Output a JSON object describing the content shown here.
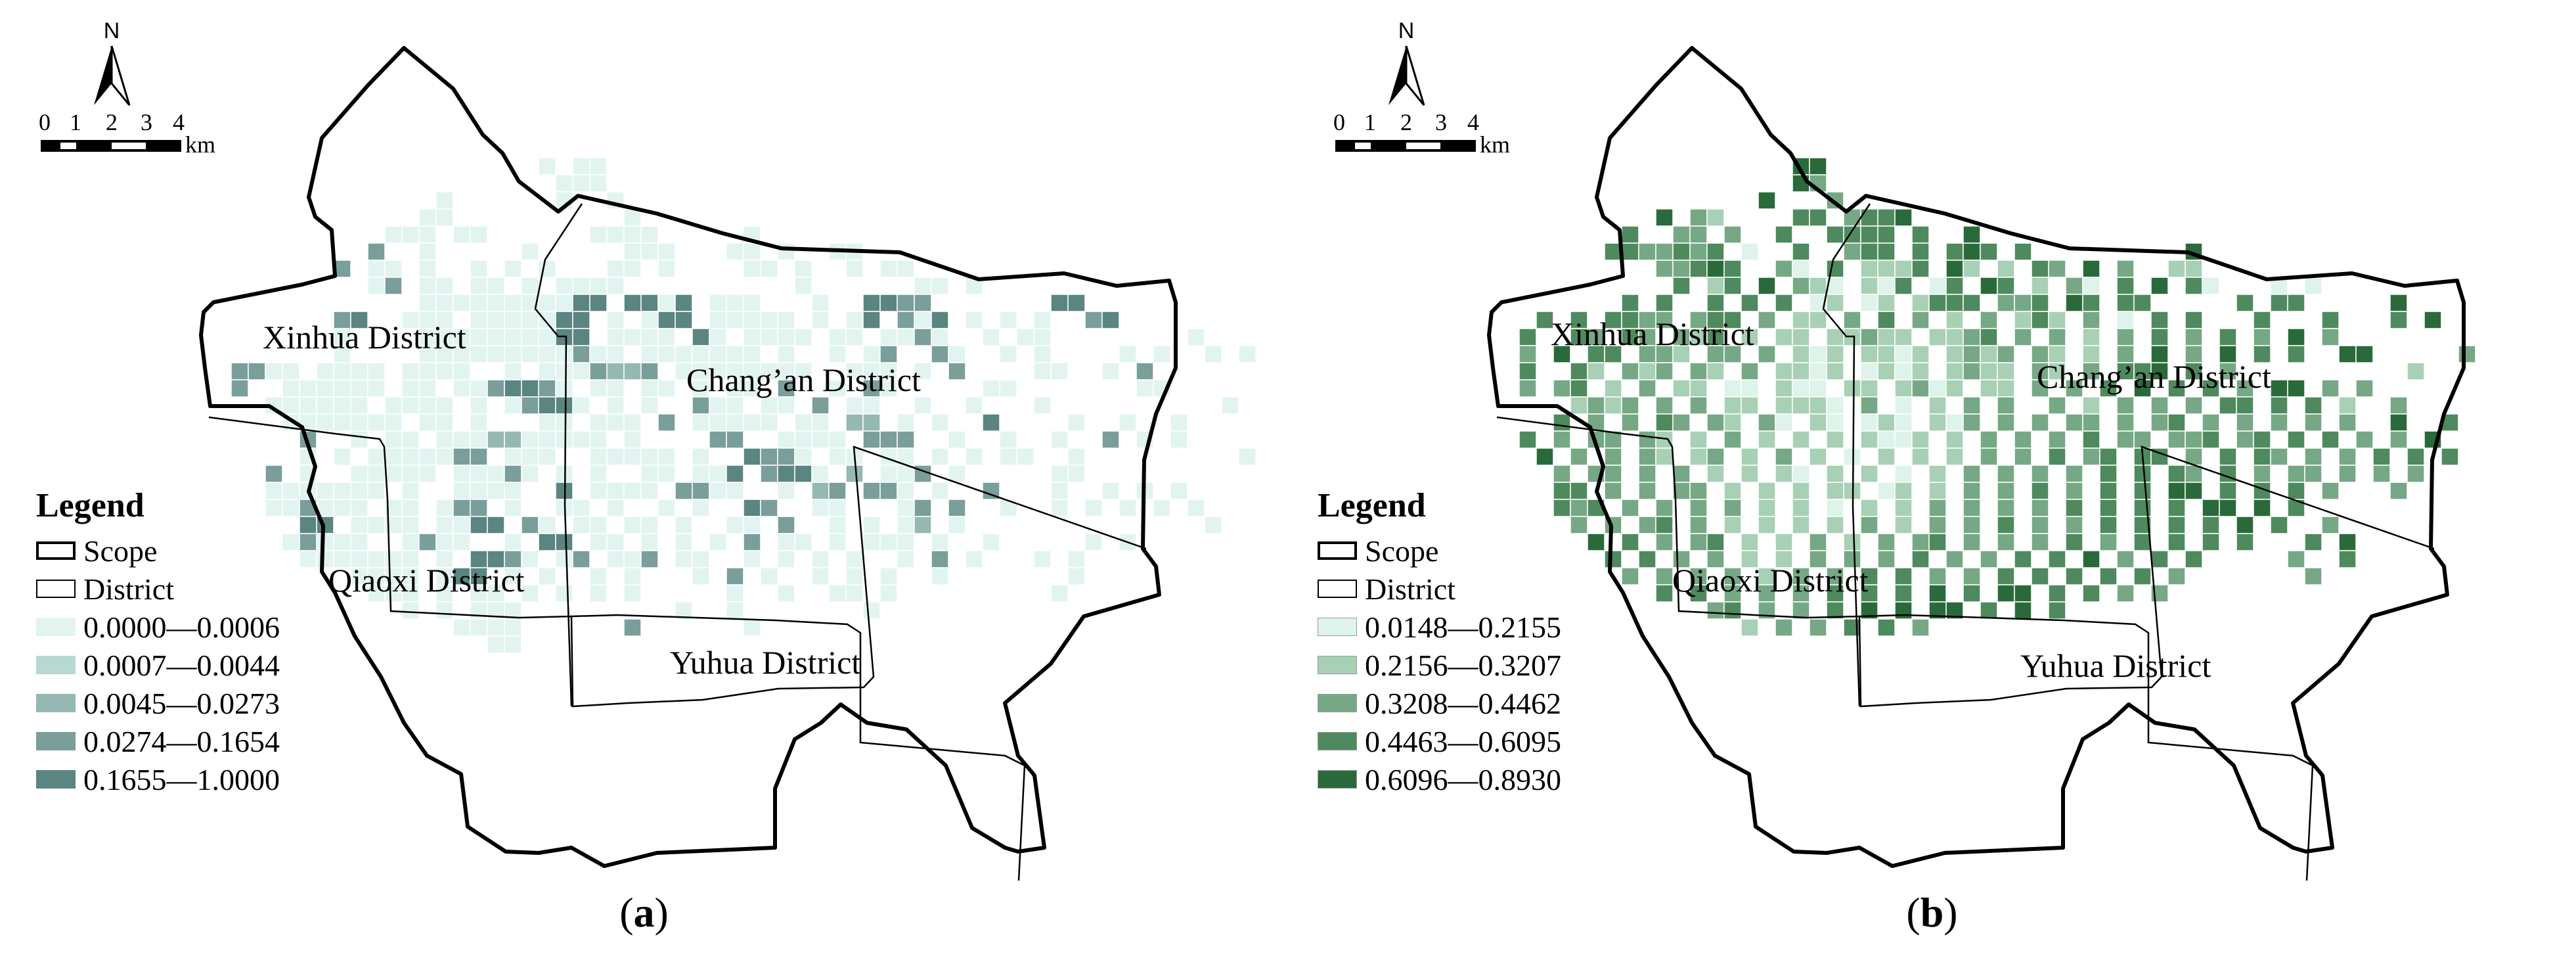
{
  "figure": {
    "panels": [
      {
        "id": "a",
        "caption_letter": "a",
        "north_label": "N",
        "scale_ticks": [
          "0",
          "1",
          "2",
          "3",
          "4"
        ],
        "scale_unit": "km",
        "legend": {
          "title": "Legend",
          "scope_label": "Scope",
          "district_label": "District",
          "classes": [
            {
              "label": "0.0000—0.0006",
              "color": "#e2f4f0"
            },
            {
              "label": "0.0007—0.0044",
              "color": "#b8d8d2"
            },
            {
              "label": "0.0045—0.0273",
              "color": "#96b8b2"
            },
            {
              "label": "0.0274—0.1654",
              "color": "#7a9e9a"
            },
            {
              "label": "0.1655—1.0000",
              "color": "#5a8580"
            }
          ]
        },
        "districts": [
          "Xinhua District",
          "Chang’an District",
          "Qiaoxi District",
          "Yuhua District"
        ]
      },
      {
        "id": "b",
        "caption_letter": "b",
        "north_label": "N",
        "scale_ticks": [
          "0",
          "1",
          "2",
          "3",
          "4"
        ],
        "scale_unit": "km",
        "legend": {
          "title": "Legend",
          "scope_label": "Scope",
          "district_label": "District",
          "classes": [
            {
              "label": "0.0148—0.2155",
              "color": "#def3ea"
            },
            {
              "label": "0.2156—0.3207",
              "color": "#a8d0b5"
            },
            {
              "label": "0.3208—0.4462",
              "color": "#76a885"
            },
            {
              "label": "0.4463—0.6095",
              "color": "#4e8a5e"
            },
            {
              "label": "0.6096—0.8930",
              "color": "#2a6a3a"
            }
          ]
        },
        "districts": [
          "Xinhua District",
          "Chang’an District",
          "Qiaoxi District",
          "Yuhua District"
        ]
      }
    ]
  },
  "chart_data": [
    {
      "type": "heatmap",
      "title": "(a)",
      "legend_title": "Legend",
      "classes": [
        "0.0000—0.0006",
        "0.0007—0.0044",
        "0.0045—0.0273",
        "0.0274—0.1654",
        "0.1655—1.0000"
      ],
      "class_colors": [
        "#e2f4f0",
        "#b8d8d2",
        "#96b8b2",
        "#7a9e9a",
        "#5a8580"
      ],
      "regions": [
        "Xinhua District",
        "Chang’an District",
        "Qiaoxi District",
        "Yuhua District"
      ],
      "scale_bar_km": [
        0,
        1,
        2,
        3,
        4
      ],
      "grid_origin": [
        300,
        240
      ],
      "cell_size": 26,
      "rows": [
        "....................1.11.............................................",
        ".....................111..........................................",
        "..............1......1..1.........................................",
        ".............11..........1.......................................",
        "...........111.11......1111.....1................................",
        "..........4..1.....1.....111...11.1..11..........................",
        "........4.11.1..1.1.1...11.1....11.1..1.11.......................",
        "..........14.11.11.1.1111..........1......11.1...................",
        ".............11111111155.5515.111...1..5544.......55.............",
        "........45..111.1111155.1.155.11111.1.15.415.1.1.1..45..........",
        "........1....1111111155.1111.51.1111.11.1141..1.11........1.......",
        "........1....111111111411.1111111.1..1.14..41..1.1....1.1..1.1...",
        "..4411.1111.1111..1.1114334.11111111..111.1.4....11..1.4.........",
        "..4..111111.11.1145541.11.11.1.11.4..1.41.....11.......11.......",
        "....111111.1111.1.14551.1.1..411.11.4.11..1..1...1..........1....",
        ".....1111111.11.1...11.111.4.11111.11.33.1.1..5....1..1..1.......",
        "......4..1.11.1113311111.1....44..1111.444..1..1..1..4.1.1.......",
        "......1.1.1111144.111..11111.1..5441.11.11.1.1.11..1.........1...",
        "....4.1..11111.11141.1.1..11.115.4551.3.114.1.....11............",
        "....1111111.1..1111..5.1111.4411..1.34.441.1..4...1..1.1.1.......",
        "....114111.11.144.1..11.1..1.1..54..11...14.4..1..1.1.1.1.1......",
        "......55.1111.1155.41.11.11.1..11.4..1.1.13.1..............1.....",
        ".....14111..1411..1.55.11.1.1.1.4.11.1.111.1..1.....1.1..........",
        "......1111111.1.5541.14.114.11..1.1.1.1..1.4.1...1.1.............",
        ".........1111.155.1.1..1.1...1.4.1..1.1.1..1.......1.............",
        "..........111.1.11.1.1.1.1.....1..1..11.1.........1..............",
        "............1.1.111.........1..1.......1.........................",
        "...............1111......4......1................................",
        ".................11.............................................."
      ]
    },
    {
      "type": "heatmap",
      "title": "(b)",
      "legend_title": "Legend",
      "classes": [
        "0.0148—0.2155",
        "0.2156—0.3207",
        "0.3208—0.4462",
        "0.4463—0.6095",
        "0.6096—0.8930"
      ],
      "class_colors": [
        "#def3ea",
        "#a8d0b5",
        "#76a885",
        "#4e8a5e",
        "#2a6a3a"
      ],
      "regions": [
        "Xinhua District",
        "Chang’an District",
        "Qiaoxi District",
        "Yuhua District"
      ],
      "scale_bar_km": [
        0,
        1,
        2,
        3,
        4
      ],
      "grid_origin": [
        300,
        240
      ],
      "cell_size": 26,
      "rows": [
        "..................55..............................................",
        "..................53......................................................",
        "................5...3.............................................",
        "..........5.32....44.3445.........................................",
        "........4..33.3..4..4444.4..5.......................................",
        ".......4433434.1..4..344.4.454.4.........5........................",
        "..........33454..31.4.2224.52.2.43.5.3..22.......................",
        "...........4.24.5.321.214.14.54.2.31.4.5.41...1.1...................",
        "........4.4..4.4.4.12.12.2444.334.54.44.....4.44.....5...........",
        "...4.4.4433.344.3.22.3.4.3.2.3.242.3.1.4.4...4...4...4.5...........",
        "..4..43.43.324.2.22.22322.2234.3.3.2.3.4.3.4.3.5.3...............",
        "..3.5.44.332.33.3.212.2212.2323.32.2.3.5.3.5.4.4..55.....3.......",
        "..4..42.323.32.3.2212.1212.2322.32.3.445.4.3..........2..........",
        "..3.34.2.3.22.11.211.22.2312.22.3.3.4.5.4.4.3.55.3.3.............",
        ".....2323.3.3.22.2221.3.1.2.3.3..3.2.3.3.3.44.4.4.2..3...........",
        "....4.3.3.43.32.31.21.121.213.3.3.33.3.34.3.3.3.3.3..5..4........",
        "..4.3.33.32.2.3.2.2.2.2112.2.3.3.3.4.33.334.34.4.4.3.3.5.........",
        "...5.3.3.32.23.2.3.2.1.2.2.2.3.3.4.34.44.3.4.43.3.3.4.4.4........",
        "....3.33.3.3.2.2.21.2.2.1.2.3.3.3.3.4.4.43.4.3.33.3.3.3..........",
        "....44.3.3.33.2.2.2.22.12.2.3.3.4.3.4.4.55.4.4.4.3...3...........",
        "....434.3.3.3.3.2.2.1.2.2.3.3.3.3.4.4.4.4.55.5.4.................",
        ".....3.3.34.3.2.2.2.2.3.2.3.3.4.3.3.4.4.4.4.5.4..3...............",
        "......5.4.3.34.2.2.3.2.3.34.3.3.3.4.3.4.4.4.4...4.5..............",
        ".......4.4.3.3.2.2.3.3.3.4.3.3.4.4.5.3.4.4.....3..4..............",
        "........3.3.3.3.2.3.3.4.4.3.3.4.4.4.4.4.3.......3................",
        "..........4.4.3.3.3.4.4.4.5.4.55.4.4.3.3.........................",
        ".............34.3.3.4.5.5.55.4.5.4..............................",
        "...............2.3.3.4.4.3.......................................",
        "................................................................."
      ]
    }
  ]
}
